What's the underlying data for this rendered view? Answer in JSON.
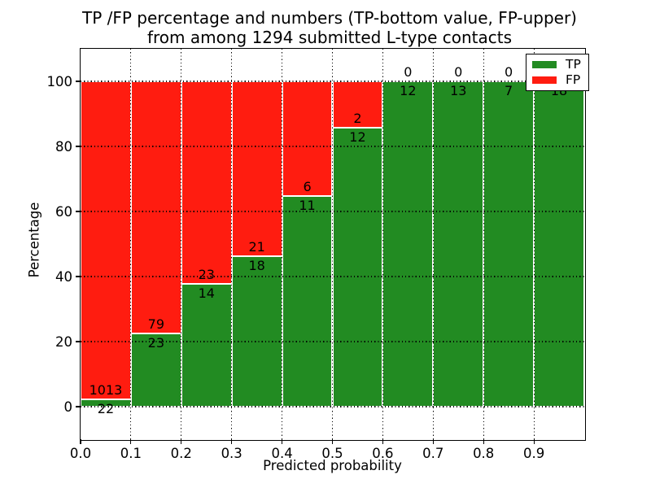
{
  "title": {
    "line1": "TP /FP percentage and numbers (TP-bottom value, FP-upper)",
    "line2": "from among 1294 submitted L-type contacts"
  },
  "chart_data": {
    "type": "bar",
    "stacked": true,
    "normalized_to_percent": true,
    "title": "TP /FP percentage and numbers (TP-bottom value, FP-upper) from among 1294 submitted L-type contacts",
    "xlabel": "Predicted probability",
    "ylabel": "Percentage",
    "total_contacts": 1294,
    "categories": [
      "0.0-0.1",
      "0.1-0.2",
      "0.2-0.3",
      "0.3-0.4",
      "0.4-0.5",
      "0.5-0.6",
      "0.6-0.7",
      "0.7-0.8",
      "0.8-0.9",
      "0.9-1.0"
    ],
    "series": [
      {
        "name": "TP",
        "color": "#228b22",
        "values": [
          22,
          23,
          14,
          18,
          11,
          12,
          12,
          13,
          7,
          18
        ]
      },
      {
        "name": "FP",
        "color": "#ff1c10",
        "values": [
          1013,
          79,
          23,
          21,
          6,
          2,
          0,
          0,
          0,
          0
        ]
      }
    ],
    "bar_label_rule": "TP count below segment boundary, FP count above it",
    "x_ticks": [
      "0.0",
      "0.1",
      "0.2",
      "0.3",
      "0.4",
      "0.5",
      "0.6",
      "0.7",
      "0.8",
      "0.9"
    ],
    "y_ticks": [
      0,
      20,
      40,
      60,
      80,
      100
    ],
    "xlim": [
      0.0,
      1.0
    ],
    "ylim": [
      -10,
      110
    ],
    "grid": "dotted-black",
    "bar_edge_color": "#ffffff",
    "legend": {
      "position": "upper right",
      "items": [
        {
          "label": "TP"
        },
        {
          "label": "FP"
        }
      ]
    }
  }
}
